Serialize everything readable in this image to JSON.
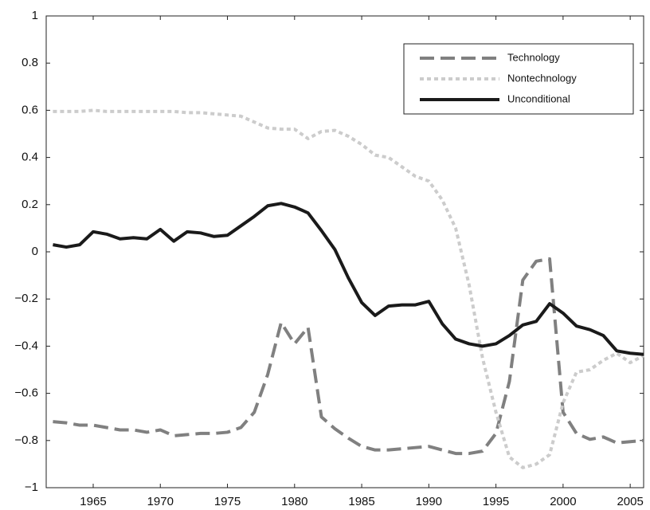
{
  "chart_data": {
    "type": "line",
    "x": [
      1962,
      1963,
      1964,
      1965,
      1966,
      1967,
      1968,
      1969,
      1970,
      1971,
      1972,
      1973,
      1974,
      1975,
      1976,
      1977,
      1978,
      1979,
      1980,
      1981,
      1982,
      1983,
      1984,
      1985,
      1986,
      1987,
      1988,
      1989,
      1990,
      1991,
      1992,
      1993,
      1994,
      1995,
      1996,
      1997,
      1998,
      1999,
      2000,
      2001,
      2002,
      2003,
      2004,
      2005,
      2006
    ],
    "series": [
      {
        "name": "Technology",
        "color": "#808080",
        "dash": "18 8",
        "values": [
          -0.72,
          -0.725,
          -0.735,
          -0.735,
          -0.745,
          -0.755,
          -0.755,
          -0.765,
          -0.755,
          -0.78,
          -0.775,
          -0.77,
          -0.77,
          -0.765,
          -0.745,
          -0.68,
          -0.52,
          -0.3,
          -0.39,
          -0.32,
          -0.7,
          -0.75,
          -0.79,
          -0.825,
          -0.84,
          -0.84,
          -0.835,
          -0.83,
          -0.825,
          -0.84,
          -0.855,
          -0.855,
          -0.845,
          -0.77,
          -0.55,
          -0.12,
          -0.04,
          -0.03,
          -0.68,
          -0.77,
          -0.795,
          -0.785,
          -0.81,
          -0.805,
          -0.8
        ]
      },
      {
        "name": "Nontechnology",
        "color": "#cccccc",
        "dash": "5 4",
        "values": [
          0.595,
          0.595,
          0.595,
          0.6,
          0.595,
          0.595,
          0.595,
          0.595,
          0.595,
          0.595,
          0.59,
          0.59,
          0.585,
          0.58,
          0.575,
          0.55,
          0.525,
          0.52,
          0.52,
          0.48,
          0.51,
          0.515,
          0.49,
          0.455,
          0.41,
          0.4,
          0.36,
          0.32,
          0.3,
          0.22,
          0.1,
          -0.14,
          -0.45,
          -0.68,
          -0.87,
          -0.915,
          -0.9,
          -0.86,
          -0.64,
          -0.51,
          -0.5,
          -0.46,
          -0.43,
          -0.47,
          -0.44
        ]
      },
      {
        "name": "Unconditional",
        "color": "#1a1a1a",
        "dash": "none",
        "values": [
          0.03,
          0.02,
          0.03,
          0.085,
          0.075,
          0.055,
          0.06,
          0.055,
          0.095,
          0.045,
          0.085,
          0.08,
          0.065,
          0.07,
          0.11,
          0.15,
          0.195,
          0.205,
          0.19,
          0.165,
          0.09,
          0.01,
          -0.11,
          -0.215,
          -0.27,
          -0.23,
          -0.225,
          -0.225,
          -0.21,
          -0.305,
          -0.37,
          -0.39,
          -0.4,
          -0.39,
          -0.355,
          -0.31,
          -0.295,
          -0.22,
          -0.26,
          -0.315,
          -0.33,
          -0.355,
          -0.42,
          -0.43,
          -0.435
        ]
      }
    ],
    "xlim": [
      1961.5,
      2006
    ],
    "xticks": [
      1965,
      1970,
      1975,
      1980,
      1985,
      1990,
      1995,
      2000,
      2005
    ],
    "ylim": [
      -1,
      1
    ],
    "yticks": [
      {
        "value": -1,
        "label": "−1"
      },
      {
        "value": -0.8,
        "label": "−0.8"
      },
      {
        "value": -0.6,
        "label": "−0.6"
      },
      {
        "value": -0.4,
        "label": "−0.4"
      },
      {
        "value": -0.2,
        "label": "−0.2"
      },
      0,
      0.2,
      0.4,
      0.6,
      0.8,
      1
    ],
    "grid": false,
    "legend": "upper right"
  }
}
